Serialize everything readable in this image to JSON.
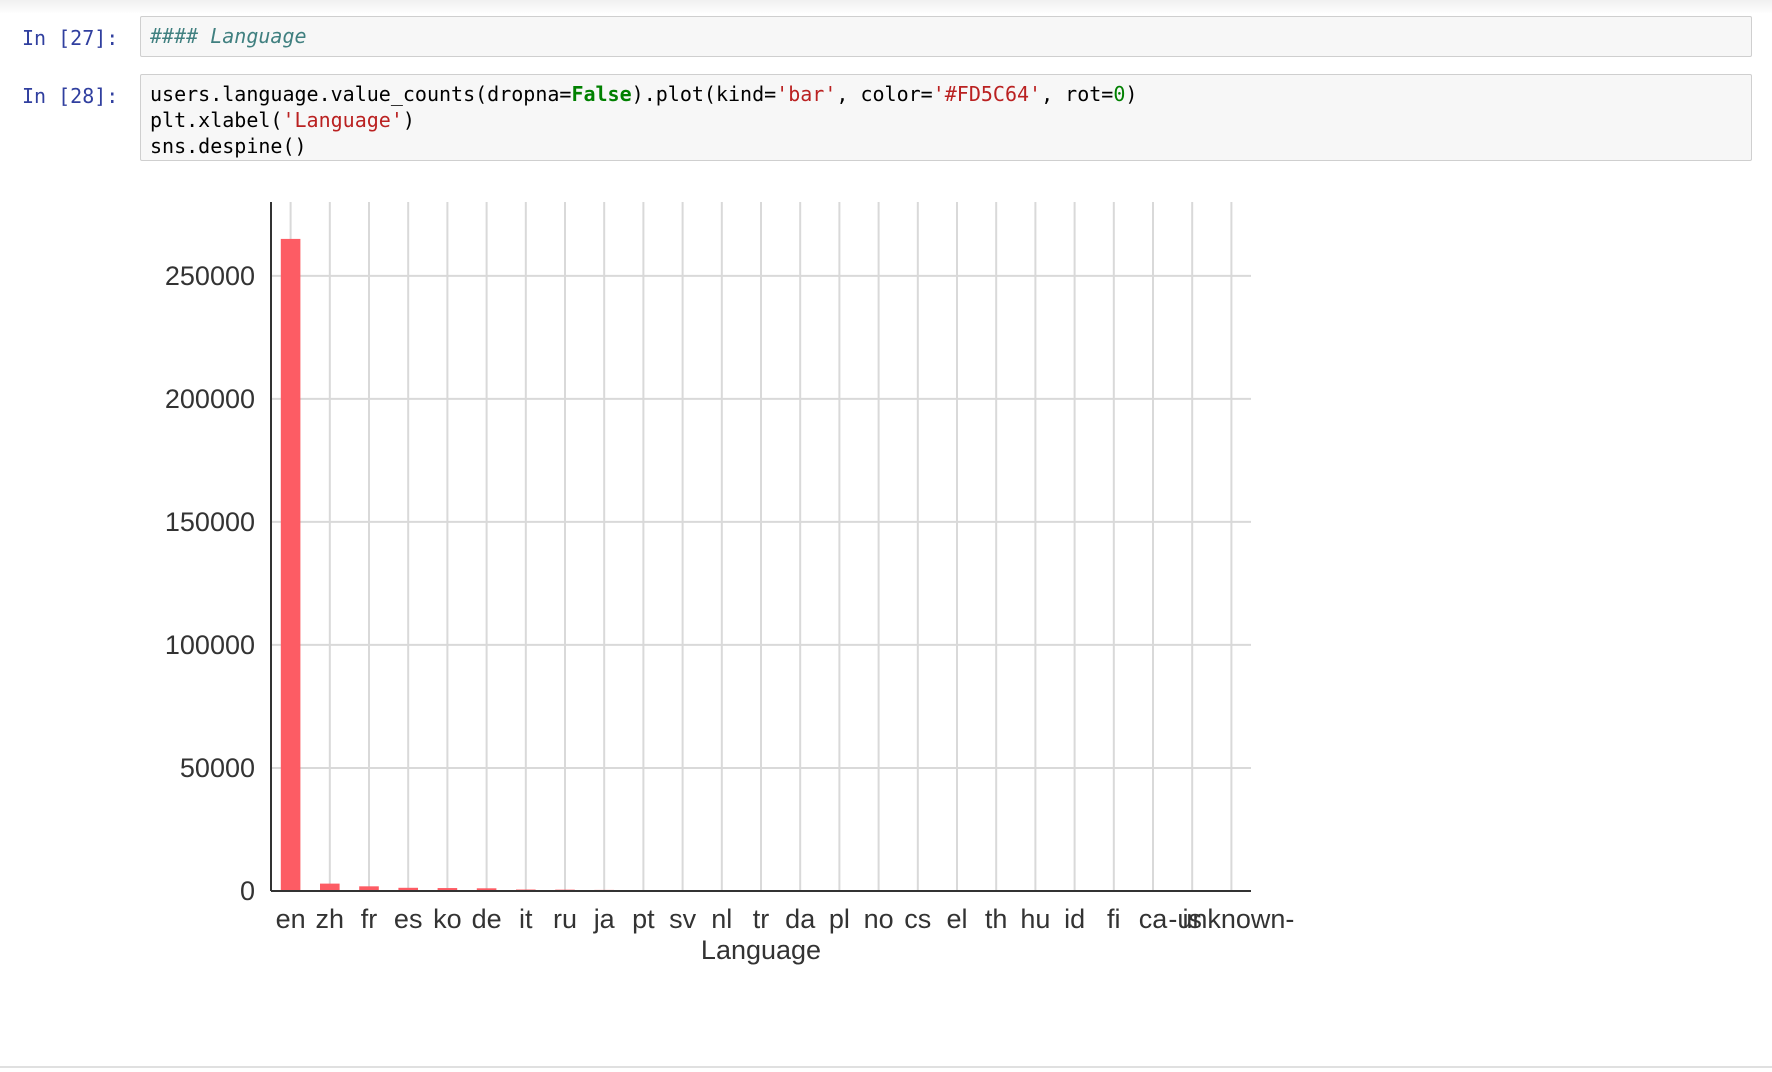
{
  "cells": [
    {
      "prompt": "In [27]:",
      "code_markdown": "#### Language"
    },
    {
      "prompt": "In [28]:",
      "line1": {
        "a": "users.language.value_counts(dropna=",
        "b": "False",
        "c": ").plot(kind=",
        "d": "'bar'",
        "e": ", color=",
        "f": "'#FD5C64'",
        "g": ", rot=",
        "h": "0",
        "i": ")"
      },
      "line2": {
        "a": "plt.xlabel(",
        "b": "'Language'",
        "c": ")"
      },
      "line3": "sns.despine()"
    }
  ],
  "chart_data": {
    "type": "bar",
    "xlabel": "Language",
    "ylabel": "",
    "ylim": [
      0,
      280000
    ],
    "yticks": [
      0,
      50000,
      100000,
      150000,
      200000,
      250000
    ],
    "grid": true,
    "color": "#FD5C64",
    "categories": [
      "en",
      "zh",
      "fr",
      "es",
      "ko",
      "de",
      "it",
      "ru",
      "ja",
      "pt",
      "sv",
      "nl",
      "tr",
      "da",
      "pl",
      "no",
      "cs",
      "el",
      "th",
      "hu",
      "id",
      "fi",
      "ca",
      "is",
      "-unknown-"
    ],
    "values": [
      265000,
      3000,
      1900,
      1300,
      1200,
      1100,
      600,
      550,
      450,
      400,
      350,
      350,
      300,
      300,
      300,
      100,
      80,
      70,
      60,
      50,
      40,
      30,
      20,
      10,
      5
    ]
  }
}
